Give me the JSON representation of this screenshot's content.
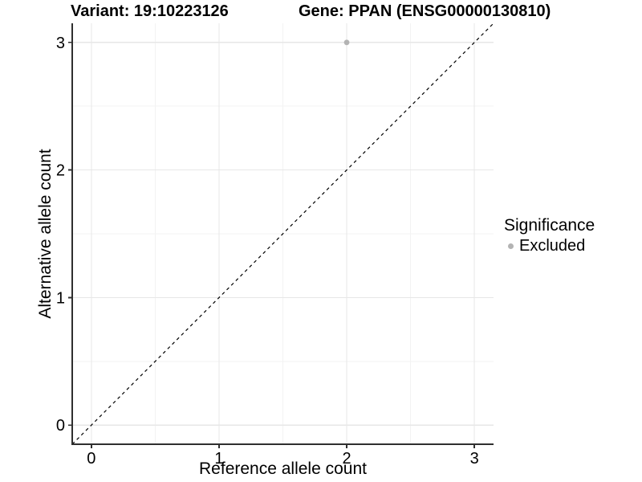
{
  "chart_data": {
    "type": "scatter",
    "title_left": "Variant: 19:10223126",
    "title_right": "Gene: PPAN (ENSG00000130810)",
    "xlabel": "Reference allele count",
    "ylabel": "Alternative allele count",
    "xlim": [
      -0.15,
      3.15
    ],
    "ylim": [
      -0.15,
      3.15
    ],
    "x_ticks": [
      0,
      1,
      2,
      3
    ],
    "y_ticks": [
      0,
      1,
      2,
      3
    ],
    "x_minor_ticks": [
      0.5,
      1.5,
      2.5
    ],
    "y_minor_ticks": [
      0.5,
      1.5,
      2.5
    ],
    "grid": "major and minor gridlines on, white background",
    "reference_line": {
      "kind": "identity y=x",
      "style": "dashed",
      "color": "#000000"
    },
    "series": [
      {
        "name": "Excluded",
        "color": "#b3b3b3",
        "points": [
          {
            "x": 2,
            "y": 3
          }
        ]
      }
    ],
    "legend": {
      "title": "Significance",
      "position": "right",
      "items": [
        {
          "label": "Excluded",
          "color": "#b3b3b3"
        }
      ]
    }
  },
  "colors": {
    "background": "#ffffff",
    "grid_major": "#e7e7e7",
    "grid_minor": "#f3f3f3",
    "axis": "#2f2f2f",
    "tick_text": "#000000"
  }
}
